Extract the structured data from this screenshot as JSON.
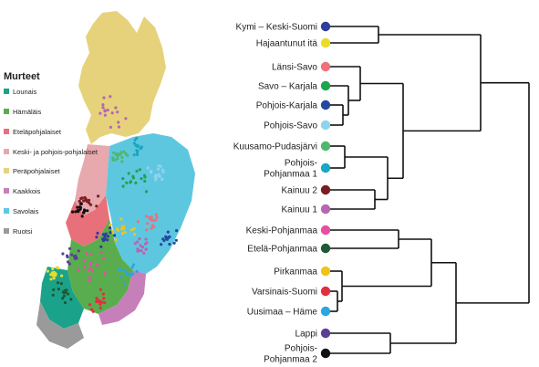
{
  "legend": {
    "title": "Murteet",
    "items": [
      {
        "label": "Lounais",
        "color": "#1aa38a"
      },
      {
        "label": "Hämäläis",
        "color": "#5aad4e"
      },
      {
        "label": "Eteläpohjalaiset",
        "color": "#e8707a"
      },
      {
        "label": "Keski- ja pohjois-pohjalaiset",
        "color": "#e7a8ae"
      },
      {
        "label": "Peräpohjalaiset",
        "color": "#e6d27a"
      },
      {
        "label": "Kaakkois",
        "color": "#c77fba"
      },
      {
        "label": "Savolais",
        "color": "#5ec7e0"
      },
      {
        "label": "Ruotsi",
        "color": "#9a9a9a"
      }
    ]
  },
  "dendrogram": {
    "leaves": [
      {
        "label": "Kymi – Keski-Suomi",
        "color": "#2e3e9a"
      },
      {
        "label": "Hajaantunut itä",
        "color": "#e8dc2a"
      },
      {
        "label": "Länsi-Savo",
        "color": "#ef6f7a"
      },
      {
        "label": "Savo – Karjala",
        "color": "#1fa34f"
      },
      {
        "label": "Pohjois-Karjala",
        "color": "#2549a3"
      },
      {
        "label": "Pohjois-Savo",
        "color": "#8fd3ee"
      },
      {
        "label": "Kuusamo-Pudasjärvi",
        "color": "#4db86e"
      },
      {
        "label": "Pohjois-\nPohjanmaa 1",
        "color": "#18a8c0"
      },
      {
        "label": "Kainuu 2",
        "color": "#7a1e24"
      },
      {
        "label": "Kainuu 1",
        "color": "#b567b4"
      },
      {
        "label": "Keski-Pohjanmaa",
        "color": "#e64fa0"
      },
      {
        "label": "Etelä-Pohjanmaa",
        "color": "#1e5a34"
      },
      {
        "label": "Pirkanmaa",
        "color": "#f0c319"
      },
      {
        "label": "Varsinais-Suomi",
        "color": "#e1303f"
      },
      {
        "label": "Uusimaa – Häme",
        "color": "#2aa6e0"
      },
      {
        "label": "Lappi",
        "color": "#5b3f97"
      },
      {
        "label": "Pohjois-\nPohjanmaa 2",
        "color": "#111111"
      }
    ]
  },
  "map": {
    "region_colors": {
      "north": "#e6d27a",
      "savo": "#5ec7e0",
      "kaakkois": "#c77fba",
      "hame": "#5aad4e",
      "lounais": "#1aa38a",
      "south_pohjanmaa": "#e8707a",
      "keski_pohjanmaa": "#e7a8ae",
      "ruotsi": "#9a9a9a"
    }
  }
}
